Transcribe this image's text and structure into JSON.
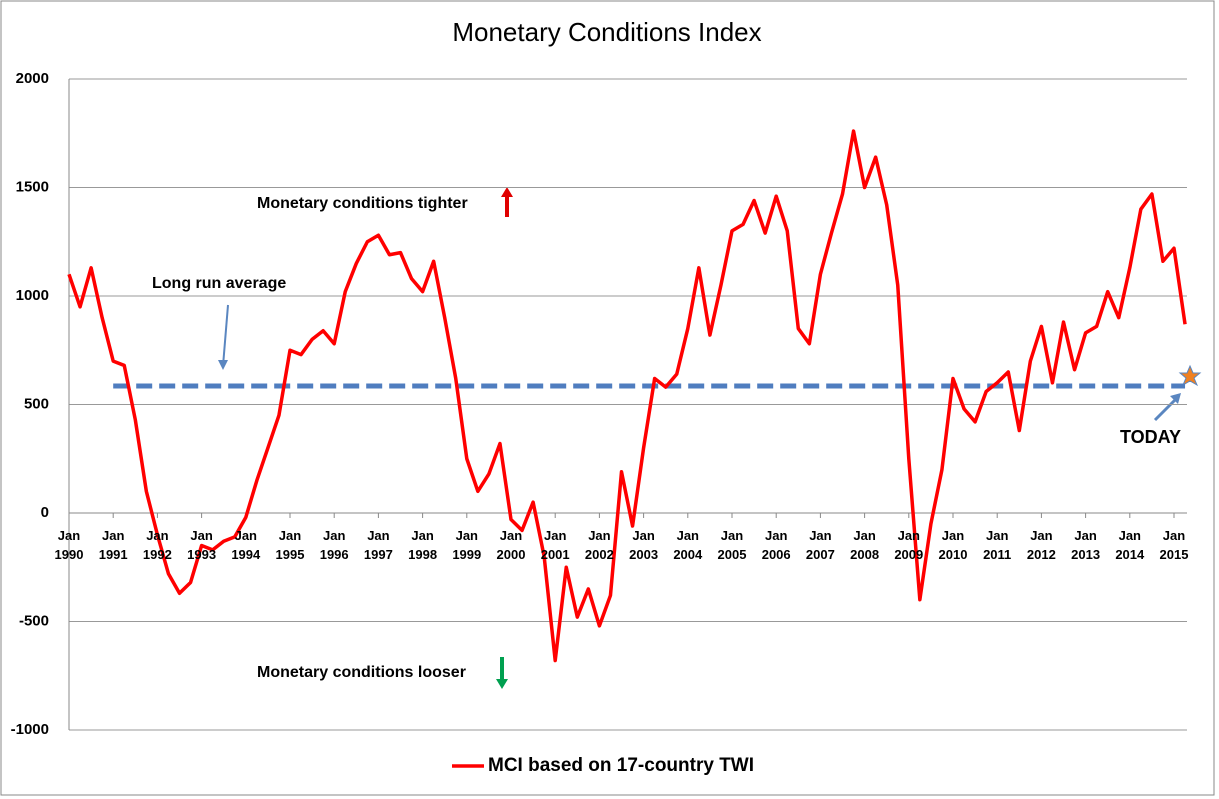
{
  "chart_data": {
    "type": "line",
    "title": "Monetary Conditions Index",
    "categories": [
      "Jan 1990",
      null,
      null,
      null,
      "Jan 1991",
      null,
      null,
      null,
      "Jan 1992",
      null,
      null,
      null,
      "Jan 1993",
      null,
      null,
      null,
      "Jan 1994",
      null,
      null,
      null,
      "Jan 1995",
      null,
      null,
      null,
      "Jan 1996",
      null,
      null,
      null,
      "Jan 1997",
      null,
      null,
      null,
      "Jan 1998",
      null,
      null,
      null,
      "Jan 1999",
      null,
      null,
      null,
      "Jan 2000",
      null,
      null,
      null,
      "Jan 2001",
      null,
      null,
      null,
      "Jan 2002",
      null,
      null,
      null,
      "Jan 2003",
      null,
      null,
      null,
      "Jan 2004",
      null,
      null,
      null,
      "Jan 2005",
      null,
      null,
      null,
      "Jan 2006",
      null,
      null,
      null,
      "Jan 2007",
      null,
      null,
      null,
      "Jan 2008",
      null,
      null,
      null,
      "Jan 2009",
      null,
      null,
      null,
      "Jan 2010",
      null,
      null,
      null,
      "Jan 2011",
      null,
      null,
      null,
      "Jan 2012",
      null,
      null,
      null,
      "Jan 2013",
      null,
      null,
      null,
      "Jan 2014",
      null,
      null,
      null,
      "Jan 2015",
      null
    ],
    "series": [
      {
        "name": "MCI based on 17-country TWI",
        "color": "#ff0000",
        "values": [
          1100,
          950,
          1130,
          900,
          700,
          680,
          430,
          100,
          -100,
          -280,
          -370,
          -320,
          -150,
          -170,
          -130,
          -110,
          -20,
          150,
          300,
          450,
          750,
          730,
          800,
          840,
          780,
          1020,
          1150,
          1250,
          1280,
          1190,
          1200,
          1080,
          1020,
          1160,
          900,
          620,
          250,
          100,
          180,
          320,
          -30,
          -80,
          50,
          -200,
          -680,
          -250,
          -480,
          -350,
          -520,
          -380,
          190,
          -60,
          300,
          620,
          580,
          640,
          850,
          1130,
          820,
          1050,
          1300,
          1330,
          1440,
          1290,
          1460,
          1300,
          850,
          780,
          1100,
          1290,
          1470,
          1760,
          1500,
          1640,
          1420,
          1050,
          250,
          -400,
          -50,
          200,
          620,
          480,
          420,
          560,
          600,
          650,
          380,
          700,
          860,
          600,
          880,
          660,
          830,
          860,
          1020,
          900,
          1130,
          1400,
          1470,
          1160,
          1220,
          870
        ]
      }
    ],
    "long_run_average": {
      "label": "Long run average",
      "value": 585
    },
    "annotations": [
      "Monetary conditions tighter",
      "Monetary conditions looser",
      "TODAY"
    ],
    "ylim": [
      -1000,
      2000
    ],
    "yticks": [
      -1000,
      -500,
      0,
      500,
      1000,
      1500,
      2000
    ],
    "grid": true,
    "legend": "bottom"
  }
}
